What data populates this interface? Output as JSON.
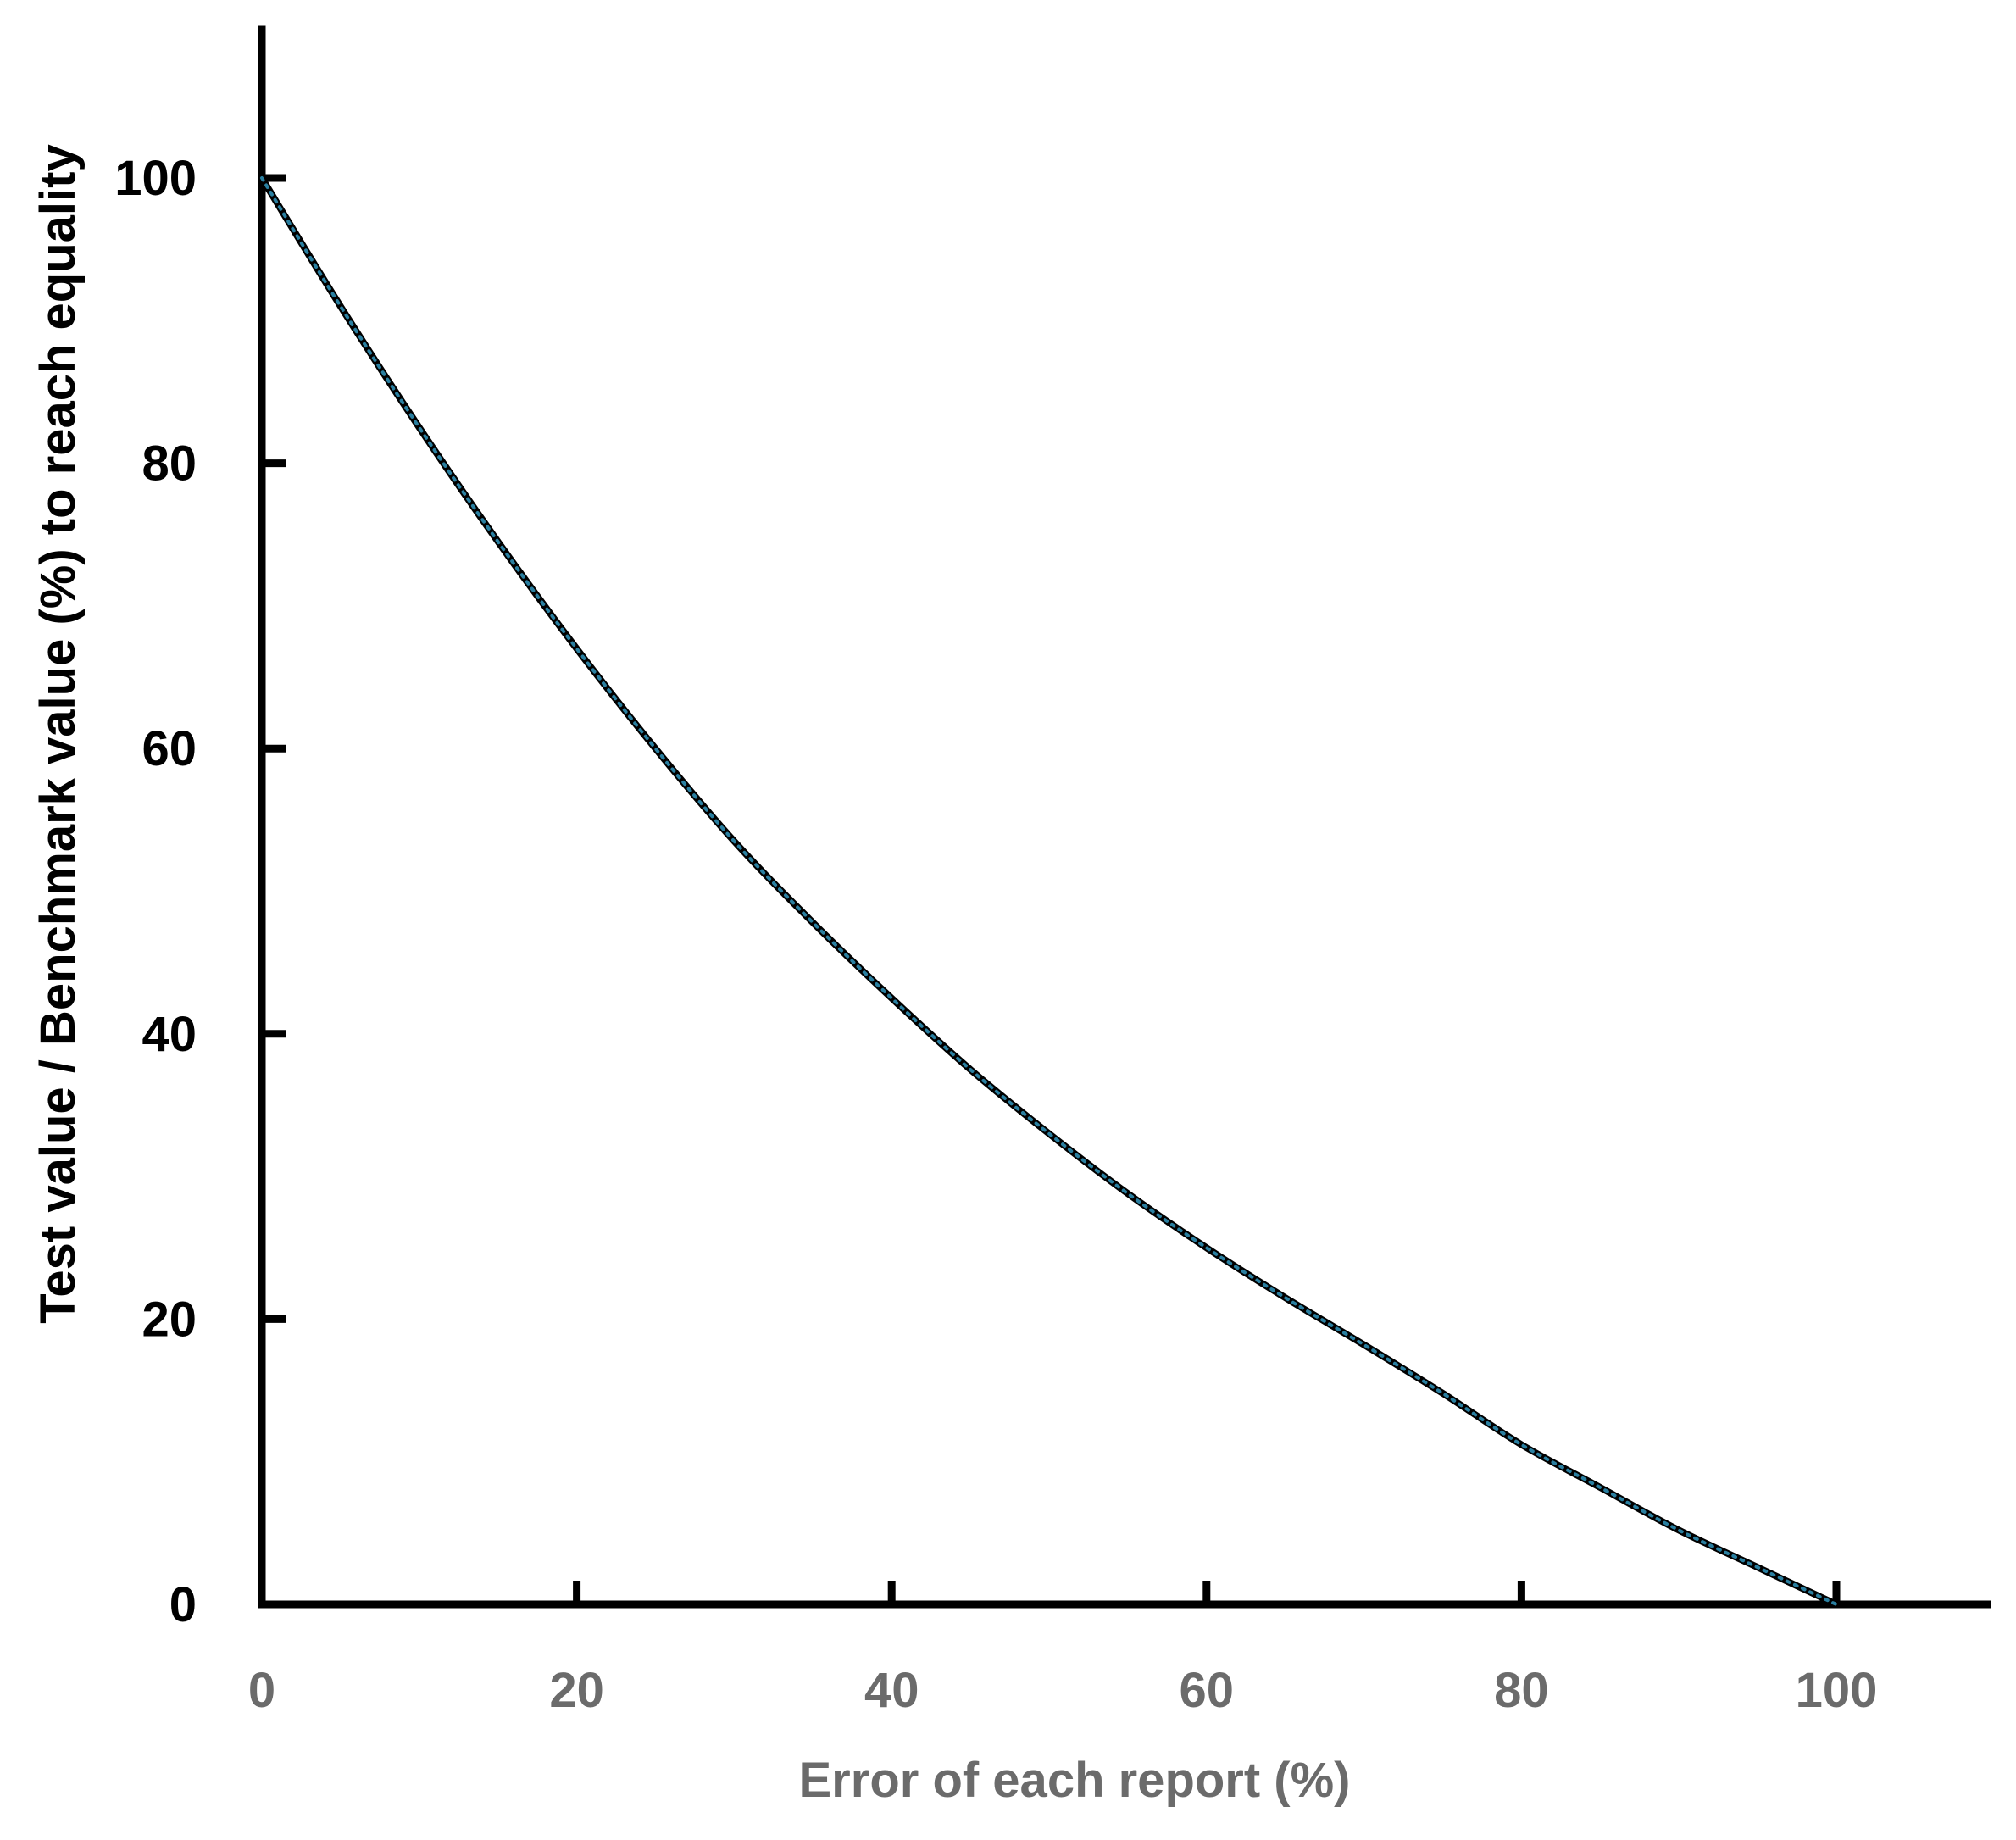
{
  "chart_data": {
    "type": "line",
    "title": "",
    "xlabel": "Error of each report (%)",
    "ylabel": "Test value / Benchmark value (%) to reach equality",
    "xlim": [
      0,
      110
    ],
    "ylim": [
      0,
      110
    ],
    "x_ticks": [
      0,
      20,
      40,
      60,
      80,
      100
    ],
    "y_ticks": [
      0,
      20,
      40,
      60,
      80,
      100
    ],
    "x_tick_labels": [
      "0",
      "20",
      "40",
      "60",
      "80",
      "100"
    ],
    "y_tick_labels": [
      "0",
      "20",
      "40",
      "60",
      "80",
      "100"
    ],
    "grid": false,
    "legend": "none",
    "colors": {
      "solid_line": "#000000",
      "dotted_line": "#2a7fa0",
      "axis": "#000000",
      "x_text": "#6b6b6b",
      "y_text": "#000000"
    },
    "series": [
      {
        "style": "solid",
        "x": [
          0,
          5,
          10,
          15,
          20,
          25,
          30,
          35,
          40,
          45,
          50,
          55,
          60,
          65,
          70,
          75,
          80,
          85,
          90,
          95,
          100
        ],
        "y": [
          100,
          91,
          82.5,
          74.5,
          67,
          60,
          53.5,
          47.8,
          42.5,
          37.5,
          33,
          28.8,
          25,
          21.5,
          18.2,
          14.8,
          11.2,
          8.2,
          5.2,
          2.6,
          0
        ]
      },
      {
        "style": "dotted",
        "x": [
          0,
          5,
          10,
          15,
          20,
          25,
          30,
          35,
          40,
          45,
          50,
          55,
          60,
          65,
          70,
          75,
          80,
          85,
          90,
          95,
          100
        ],
        "y": [
          100,
          91,
          82.5,
          74.5,
          67,
          60,
          53.5,
          47.8,
          42.5,
          37.5,
          33,
          28.8,
          25,
          21.5,
          18.2,
          14.8,
          11.2,
          8.2,
          5.2,
          2.6,
          0
        ]
      }
    ]
  }
}
